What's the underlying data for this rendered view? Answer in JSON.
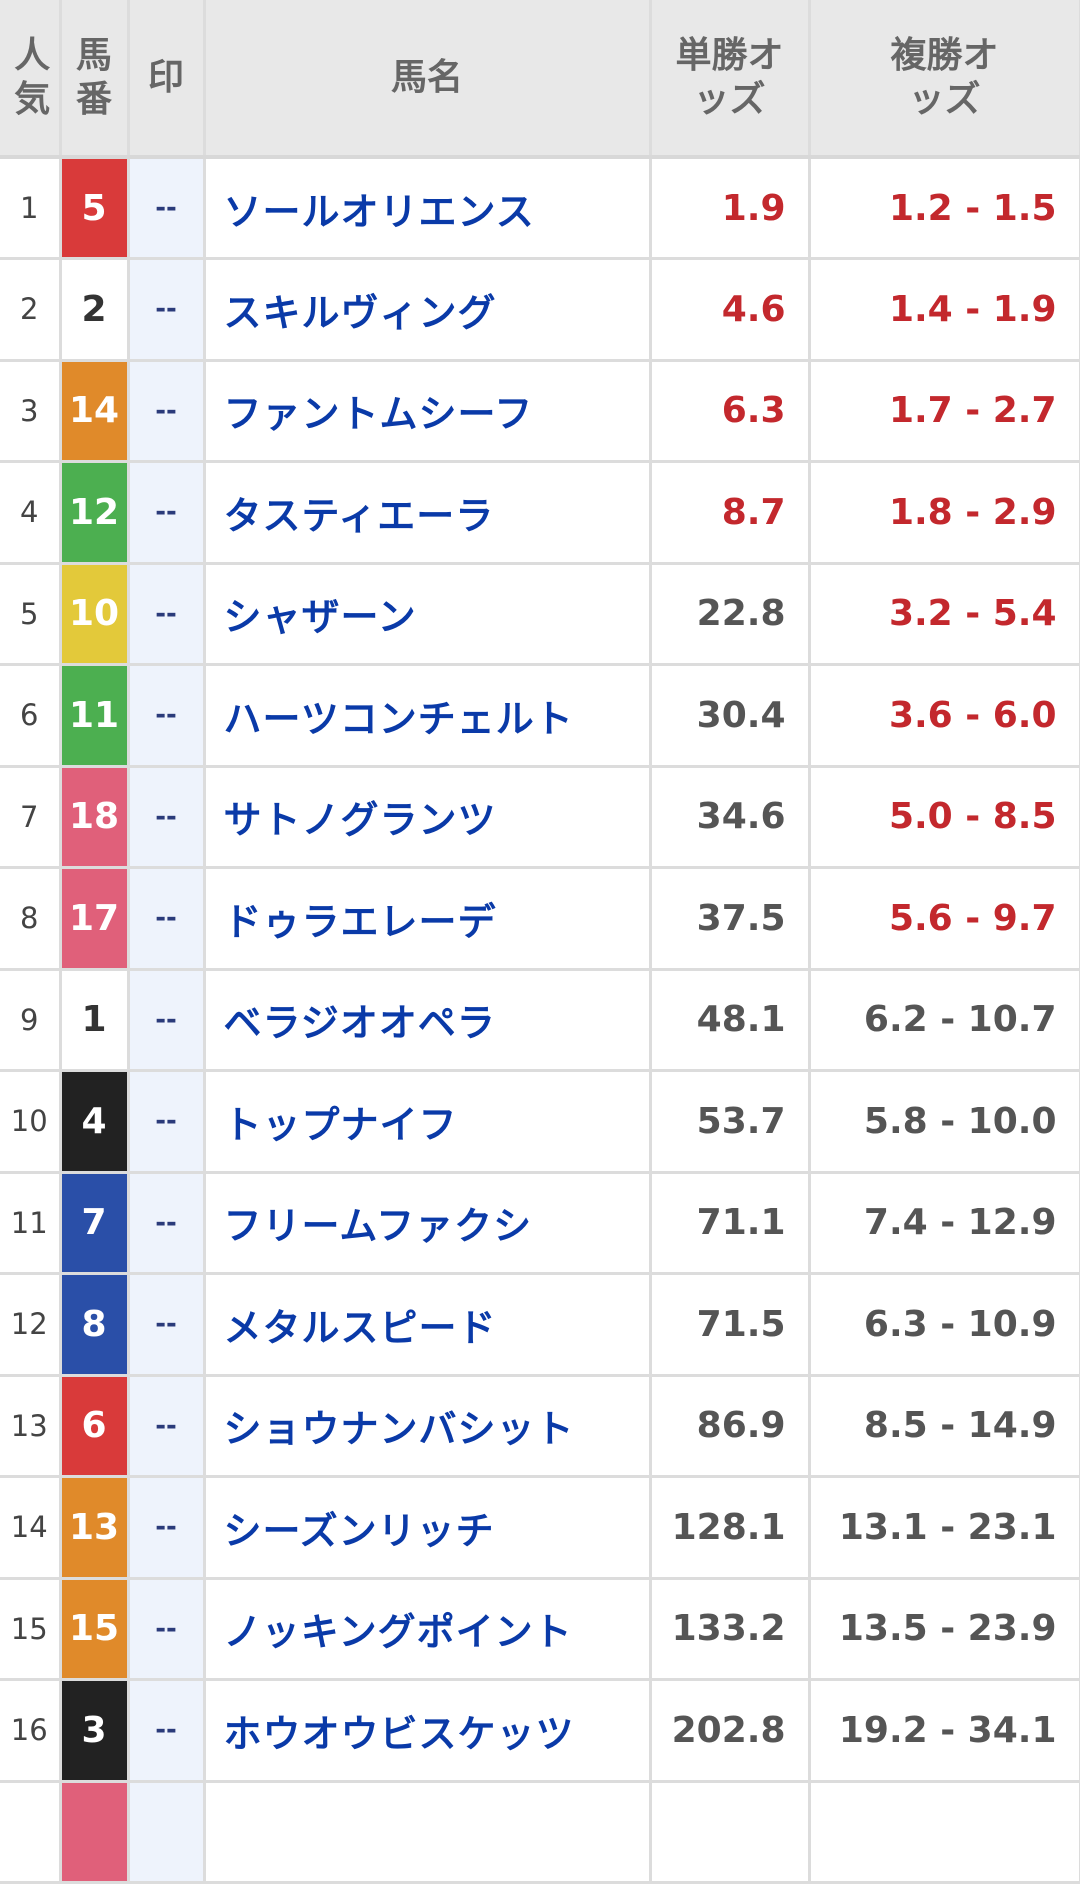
{
  "header": {
    "popularity": "人気",
    "number": "馬番",
    "mark": "印",
    "name": "馬名",
    "win": "単勝オッズ",
    "place": "複勝オッズ"
  },
  "gate_colors": {
    "1": "#ffffff",
    "2": "#222222",
    "3": "#d93a3a",
    "4": "#2a4fa8",
    "5": "#e3c93a",
    "6": "#4caf50",
    "7": "#e08a2a",
    "8": "#e0607a"
  },
  "accent_red": "#c3282d",
  "name_color": "#0a3aa8",
  "rows": [
    {
      "pop": "1",
      "num": "5",
      "gate": 3,
      "mark": "--",
      "name": "ソールオリエンス",
      "win": "1.9",
      "win_red": true,
      "place": "1.2 - 1.5",
      "place_red": true
    },
    {
      "pop": "2",
      "num": "2",
      "gate": 1,
      "mark": "--",
      "name": "スキルヴィング",
      "win": "4.6",
      "win_red": true,
      "place": "1.4 - 1.9",
      "place_red": true
    },
    {
      "pop": "3",
      "num": "14",
      "gate": 7,
      "mark": "--",
      "name": "ファントムシーフ",
      "win": "6.3",
      "win_red": true,
      "place": "1.7 - 2.7",
      "place_red": true
    },
    {
      "pop": "4",
      "num": "12",
      "gate": 6,
      "mark": "--",
      "name": "タスティエーラ",
      "win": "8.7",
      "win_red": true,
      "place": "1.8 - 2.9",
      "place_red": true
    },
    {
      "pop": "5",
      "num": "10",
      "gate": 5,
      "mark": "--",
      "name": "シャザーン",
      "win": "22.8",
      "win_red": false,
      "place": "3.2 - 5.4",
      "place_red": true
    },
    {
      "pop": "6",
      "num": "11",
      "gate": 6,
      "mark": "--",
      "name": "ハーツコンチェルト",
      "win": "30.4",
      "win_red": false,
      "place": "3.6 - 6.0",
      "place_red": true
    },
    {
      "pop": "7",
      "num": "18",
      "gate": 8,
      "mark": "--",
      "name": "サトノグランツ",
      "win": "34.6",
      "win_red": false,
      "place": "5.0 - 8.5",
      "place_red": true
    },
    {
      "pop": "8",
      "num": "17",
      "gate": 8,
      "mark": "--",
      "name": "ドゥラエレーデ",
      "win": "37.5",
      "win_red": false,
      "place": "5.6 - 9.7",
      "place_red": true
    },
    {
      "pop": "9",
      "num": "1",
      "gate": 1,
      "mark": "--",
      "name": "ベラジオオペラ",
      "win": "48.1",
      "win_red": false,
      "place": "6.2 - 10.7",
      "place_red": false
    },
    {
      "pop": "10",
      "num": "4",
      "gate": 2,
      "mark": "--",
      "name": "トップナイフ",
      "win": "53.7",
      "win_red": false,
      "place": "5.8 - 10.0",
      "place_red": false
    },
    {
      "pop": "11",
      "num": "7",
      "gate": 4,
      "mark": "--",
      "name": "フリームファクシ",
      "win": "71.1",
      "win_red": false,
      "place": "7.4 - 12.9",
      "place_red": false
    },
    {
      "pop": "12",
      "num": "8",
      "gate": 4,
      "mark": "--",
      "name": "メタルスピード",
      "win": "71.5",
      "win_red": false,
      "place": "6.3 - 10.9",
      "place_red": false
    },
    {
      "pop": "13",
      "num": "6",
      "gate": 3,
      "mark": "--",
      "name": "ショウナンバシット",
      "win": "86.9",
      "win_red": false,
      "place": "8.5 - 14.9",
      "place_red": false
    },
    {
      "pop": "14",
      "num": "13",
      "gate": 7,
      "mark": "--",
      "name": "シーズンリッチ",
      "win": "128.1",
      "win_red": false,
      "place": "13.1 - 23.1",
      "place_red": false
    },
    {
      "pop": "15",
      "num": "15",
      "gate": 7,
      "mark": "--",
      "name": "ノッキングポイント",
      "win": "133.2",
      "win_red": false,
      "place": "13.5 - 23.9",
      "place_red": false
    },
    {
      "pop": "16",
      "num": "3",
      "gate": 2,
      "mark": "--",
      "name": "ホウオウビスケッツ",
      "win": "202.8",
      "win_red": false,
      "place": "19.2 - 34.1",
      "place_red": false
    },
    {
      "pop": "",
      "num": "",
      "gate": 8,
      "mark": "",
      "name": "",
      "win": "",
      "win_red": false,
      "place": "",
      "place_red": false
    }
  ]
}
